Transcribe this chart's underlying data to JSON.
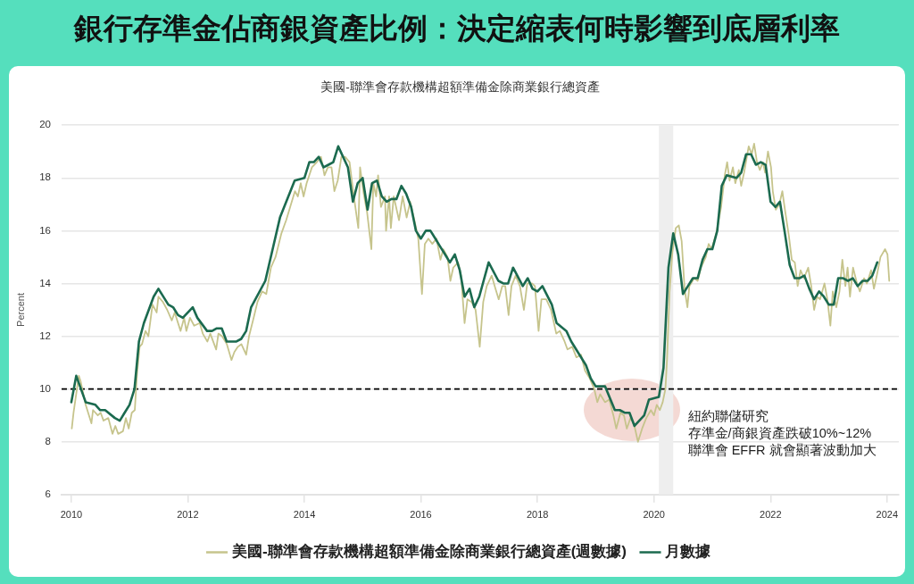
{
  "chart_data": {
    "type": "line",
    "title": "銀行存準金佔商銀資產比例：決定縮表何時影響到底層利率",
    "subtitle": "美國-聯準會存款機構超額準備金除商業銀行總資產",
    "ylabel": "Percent",
    "xlim": [
      "2009-11",
      "2024-03-15"
    ],
    "xticks": [
      "2010",
      "2012",
      "2014",
      "2016",
      "2018",
      "2020",
      "2022",
      "2024"
    ],
    "ylim": [
      6,
      20
    ],
    "yticks": [
      6,
      8,
      10,
      12,
      14,
      16,
      18,
      20
    ],
    "grid": "y",
    "legend": "bottom",
    "marker": "none",
    "line_style": "solid",
    "ref_lines": [
      {
        "axis": "y",
        "value": 10,
        "color": "#000000",
        "line_style": "dashed"
      }
    ],
    "bands": [
      {
        "axis": "x",
        "from": "2020-02",
        "to": "2020-05",
        "color": "#eeeeee"
      }
    ],
    "annotations": [
      "紐約聯儲研究",
      "存準金/商銀資產跌破10%~12%",
      "聯準會 EFFR 就會顯著波動加大"
    ],
    "series": [
      {
        "name": "美國-聯準會存款機構超額準備金除商業銀行總資產(週數據)",
        "color": "#c6c48c",
        "x": [
          "2010-01-04",
          "2010-01-15",
          "2010-02-17",
          "2010-02-28",
          "2010-04-01",
          "2010-05-07",
          "2010-05-17",
          "2010-06-16",
          "2010-07-04",
          "2010-07-22",
          "2010-08-21",
          "2010-09-16",
          "2010-10-04",
          "2010-10-22",
          "2010-11-21",
          "2010-12-09",
          "2010-12-27",
          "2011-01-15",
          "2011-02-03",
          "2011-02-17",
          "2011-03-05",
          "2011-03-20",
          "2011-04-11",
          "2011-04-29",
          "2011-05-25",
          "2011-06-20",
          "2011-07-01",
          "2011-07-29",
          "2011-08-25",
          "2011-09-23",
          "2011-10-11",
          "2011-11-17",
          "2011-12-09",
          "2011-12-23",
          "2012-01-15",
          "2012-02-10",
          "2012-03-16",
          "2012-04-04",
          "2012-05-03",
          "2012-05-21",
          "2012-06-27",
          "2012-07-11",
          "2012-08-03",
          "2012-09-02",
          "2012-10-01",
          "2012-10-19",
          "2012-11-10",
          "2012-12-02",
          "2013-01-01",
          "2013-01-19",
          "2013-02-17",
          "2013-03-13",
          "2013-04-11",
          "2013-05-07",
          "2013-06-05",
          "2013-07-04",
          "2013-08-10",
          "2013-09-09",
          "2013-10-04",
          "2013-11-03",
          "2013-11-21",
          "2013-12-09",
          "2013-12-27",
          "2014-01-15",
          "2014-02-17",
          "2014-03-20",
          "2014-04-15",
          "2014-05-07",
          "2014-05-28",
          "2014-06-20",
          "2014-07-08",
          "2014-07-29",
          "2014-08-21",
          "2014-09-13",
          "2014-10-11",
          "2014-11-07",
          "2014-12-05",
          "2014-12-16",
          "2015-01-08",
          "2015-01-29",
          "2015-02-25",
          "2015-03-09",
          "2015-03-27",
          "2015-04-08",
          "2015-04-26",
          "2015-05-21",
          "2015-05-28",
          "2015-06-16",
          "2015-06-27",
          "2015-07-15",
          "2015-08-17",
          "2015-09-09",
          "2015-10-04",
          "2015-10-26",
          "2015-11-25",
          "2015-12-16",
          "2016-01-08",
          "2016-01-26",
          "2016-02-17",
          "2016-03-13",
          "2016-04-08",
          "2016-05-03",
          "2016-05-21",
          "2016-06-16",
          "2016-07-04",
          "2016-07-22",
          "2016-08-21",
          "2016-09-09",
          "2016-10-01",
          "2016-10-19",
          "2016-11-14",
          "2016-12-09",
          "2017-01-04",
          "2017-01-26",
          "2017-02-17",
          "2017-03-20",
          "2017-04-08",
          "2017-05-03",
          "2017-05-25",
          "2017-06-13",
          "2017-07-04",
          "2017-07-22",
          "2017-08-17",
          "2017-09-13",
          "2017-10-08",
          "2017-10-29",
          "2017-11-28",
          "2017-12-16",
          "2018-01-08",
          "2018-01-26",
          "2018-02-25",
          "2018-03-27",
          "2018-04-29",
          "2018-05-21",
          "2018-06-20",
          "2018-07-08",
          "2018-08-07",
          "2018-09-02",
          "2018-10-01",
          "2018-10-26",
          "2018-11-25",
          "2018-12-23",
          "2019-01-11",
          "2019-01-29",
          "2019-02-28",
          "2019-03-27",
          "2019-04-22",
          "2019-05-10",
          "2019-06-05",
          "2019-06-27",
          "2019-07-15",
          "2019-08-07",
          "2019-08-28",
          "2019-09-23",
          "2019-10-19",
          "2019-11-14",
          "2019-12-13",
          "2020-01-01",
          "2020-01-19",
          "2020-02-07",
          "2020-02-25",
          "2020-03-13",
          "2020-03-23",
          "2020-04-08",
          "2020-04-26",
          "2020-05-17",
          "2020-06-05",
          "2020-06-23",
          "2020-07-11",
          "2020-07-29",
          "2020-08-10",
          "2020-09-09",
          "2020-10-01",
          "2020-10-22",
          "2020-11-21",
          "2020-12-09",
          "2020-12-27",
          "2021-01-26",
          "2021-02-25",
          "2021-03-20",
          "2021-04-04",
          "2021-04-19",
          "2021-05-10",
          "2021-05-25",
          "2021-06-16",
          "2021-07-01",
          "2021-07-19",
          "2021-08-17",
          "2021-09-05",
          "2021-09-20",
          "2021-10-08",
          "2021-10-26",
          "2021-11-14",
          "2021-11-28",
          "2021-12-16",
          "2022-01-04",
          "2022-01-15",
          "2022-02-03",
          "2022-02-25",
          "2022-03-16",
          "2022-04-01",
          "2022-04-26",
          "2022-05-14",
          "2022-06-02",
          "2022-06-20",
          "2022-07-08",
          "2022-07-29",
          "2022-08-25",
          "2022-09-13",
          "2022-10-01",
          "2022-10-19",
          "2022-11-07",
          "2022-12-05",
          "2022-12-23",
          "2023-01-11",
          "2023-01-26",
          "2023-02-17",
          "2023-03-09",
          "2023-03-27",
          "2023-04-15",
          "2023-04-29",
          "2023-05-14",
          "2023-06-02",
          "2023-06-27",
          "2023-07-15",
          "2023-08-10",
          "2023-08-28",
          "2023-09-23",
          "2023-10-11",
          "2023-10-29",
          "2023-11-21",
          "2023-12-20",
          "2024-01-04",
          "2024-01-15"
        ],
        "values": [
          8.5,
          9.1,
          10.5,
          10.3,
          9.4,
          8.7,
          9.2,
          9.0,
          9.1,
          8.8,
          8.9,
          8.3,
          8.6,
          8.3,
          8.4,
          8.9,
          8.5,
          9.1,
          9.2,
          10.6,
          11.6,
          11.7,
          12.2,
          12.0,
          13.2,
          12.9,
          13.5,
          13.3,
          13.0,
          12.6,
          12.9,
          12.2,
          12.7,
          12.2,
          12.7,
          12.4,
          12.5,
          12.1,
          11.8,
          12.1,
          11.5,
          12.1,
          12.0,
          11.7,
          11.1,
          11.4,
          11.6,
          11.7,
          11.3,
          12.0,
          12.7,
          13.3,
          13.7,
          13.6,
          14.6,
          15.0,
          15.9,
          16.4,
          16.9,
          17.5,
          17.3,
          17.8,
          17.3,
          17.8,
          18.4,
          18.6,
          18.8,
          18.1,
          18.4,
          18.4,
          17.5,
          17.9,
          18.8,
          18.8,
          18.6,
          17.3,
          16.1,
          18.4,
          17.4,
          16.7,
          15.3,
          17.8,
          17.3,
          18.1,
          16.9,
          17.3,
          16.0,
          17.3,
          16.1,
          17.3,
          16.4,
          17.3,
          16.5,
          17.1,
          16.3,
          15.7,
          13.6,
          15.5,
          15.7,
          15.5,
          15.7,
          14.9,
          15.3,
          15.0,
          14.1,
          14.6,
          14.8,
          14.3,
          12.5,
          13.4,
          13.3,
          13.0,
          11.6,
          13.3,
          13.9,
          14.3,
          13.9,
          13.4,
          13.9,
          13.9,
          12.8,
          13.9,
          14.3,
          13.9,
          13.0,
          14.0,
          14.0,
          13.9,
          12.2,
          13.4,
          13.4,
          13.0,
          12.1,
          12.2,
          11.8,
          11.5,
          11.6,
          11.2,
          11.3,
          10.7,
          10.4,
          10.0,
          9.5,
          9.8,
          9.5,
          9.6,
          9.0,
          8.5,
          9.1,
          9.0,
          8.5,
          8.9,
          8.7,
          8.0,
          8.5,
          8.9,
          9.2,
          9.0,
          9.4,
          9.2,
          9.5,
          10.0,
          11.1,
          13.7,
          15.2,
          16.1,
          16.2,
          15.6,
          13.8,
          13.1,
          13.9,
          14.2,
          14.1,
          14.6,
          15.0,
          15.5,
          15.3,
          15.9,
          16.9,
          18.1,
          18.6,
          17.9,
          18.4,
          17.8,
          18.3,
          17.7,
          18.2,
          19.2,
          18.9,
          19.3,
          18.6,
          18.3,
          18.6,
          18.2,
          19.0,
          18.4,
          17.5,
          16.8,
          17.0,
          17.5,
          16.8,
          15.8,
          14.9,
          14.8,
          13.9,
          14.5,
          14.2,
          14.6,
          13.9,
          13.0,
          13.5,
          13.4,
          14.0,
          13.4,
          12.4,
          13.7,
          13.1,
          13.7,
          14.9,
          13.9,
          14.6,
          13.5,
          14.6,
          14.0,
          13.7,
          14.2,
          14.0,
          14.5,
          13.8,
          14.3,
          15.0,
          15.3,
          15.1,
          14.1
        ]
      },
      {
        "name": "月數據",
        "color": "#1b6a4f",
        "x": [
          "2010-01",
          "2010-02",
          "2010-04",
          "2010-06",
          "2010-07",
          "2010-08",
          "2010-10",
          "2010-11",
          "2010-12",
          "2011-01",
          "2011-02",
          "2011-03",
          "2011-04",
          "2011-06",
          "2011-07",
          "2011-09",
          "2011-10",
          "2011-11",
          "2011-12",
          "2012-02",
          "2012-03",
          "2012-05",
          "2012-06",
          "2012-07",
          "2012-08",
          "2012-09",
          "2012-11",
          "2012-12",
          "2013-01",
          "2013-02",
          "2013-05",
          "2013-08",
          "2013-11",
          "2014-01",
          "2014-02",
          "2014-03",
          "2014-04",
          "2014-05",
          "2014-06",
          "2014-07",
          "2014-08",
          "2014-10",
          "2014-11",
          "2014-12",
          "2015-01",
          "2015-02",
          "2015-03",
          "2015-04",
          "2015-05",
          "2015-06",
          "2015-07",
          "2015-08",
          "2015-09",
          "2015-10",
          "2015-11",
          "2015-12",
          "2016-01",
          "2016-02",
          "2016-03",
          "2016-04",
          "2016-05",
          "2016-06",
          "2016-07",
          "2016-08",
          "2016-09",
          "2016-10",
          "2016-11",
          "2016-12",
          "2017-01",
          "2017-03",
          "2017-05",
          "2017-06",
          "2017-07",
          "2017-08",
          "2017-10",
          "2017-11",
          "2017-12",
          "2018-01",
          "2018-02",
          "2018-04",
          "2018-05",
          "2018-07",
          "2018-08",
          "2018-11",
          "2018-12",
          "2019-01",
          "2019-03",
          "2019-05",
          "2019-06",
          "2019-07",
          "2019-08",
          "2019-09",
          "2019-11",
          "2019-12",
          "2020-02",
          "2020-03",
          "2020-04",
          "2020-05",
          "2020-06",
          "2020-07",
          "2020-08",
          "2020-09",
          "2020-10",
          "2020-11",
          "2020-12",
          "2021-01",
          "2021-02",
          "2021-03",
          "2021-04",
          "2021-06",
          "2021-07",
          "2021-08",
          "2021-09",
          "2021-10",
          "2021-11",
          "2021-12",
          "2022-01",
          "2022-02",
          "2022-03",
          "2022-04",
          "2022-05",
          "2022-06",
          "2022-07",
          "2022-08",
          "2022-09",
          "2022-10",
          "2022-11",
          "2022-12",
          "2023-01",
          "2023-02",
          "2023-03",
          "2023-04",
          "2023-05",
          "2023-06",
          "2023-07",
          "2023-08",
          "2023-09",
          "2023-10",
          "2023-11"
        ],
        "values": [
          9.5,
          10.5,
          9.5,
          9.4,
          9.2,
          9.2,
          8.9,
          8.8,
          9.1,
          9.4,
          10.0,
          11.8,
          12.5,
          13.5,
          13.8,
          13.2,
          13.1,
          12.8,
          12.7,
          13.1,
          12.7,
          12.2,
          12.2,
          12.3,
          12.3,
          11.8,
          11.8,
          11.9,
          12.2,
          13.1,
          14.1,
          16.5,
          17.9,
          18.0,
          18.6,
          18.6,
          18.8,
          18.4,
          18.5,
          18.6,
          19.2,
          18.4,
          17.1,
          17.8,
          18.0,
          16.8,
          17.8,
          17.9,
          17.3,
          17.1,
          17.2,
          17.2,
          17.7,
          17.4,
          16.9,
          16.0,
          15.7,
          16.0,
          16.0,
          15.7,
          15.4,
          15.1,
          14.8,
          15.1,
          14.5,
          13.5,
          13.8,
          13.1,
          13.5,
          14.8,
          14.1,
          14.0,
          14.0,
          14.6,
          13.9,
          14.2,
          13.8,
          13.7,
          13.9,
          13.2,
          12.5,
          12.2,
          11.8,
          10.9,
          10.4,
          10.1,
          10.1,
          9.2,
          9.2,
          9.1,
          9.1,
          8.6,
          9.0,
          9.6,
          9.7,
          10.8,
          14.6,
          15.9,
          15.1,
          13.6,
          13.9,
          14.2,
          14.2,
          14.9,
          15.3,
          15.3,
          16.0,
          17.7,
          18.1,
          18.0,
          18.2,
          18.9,
          18.9,
          18.5,
          18.6,
          18.5,
          17.1,
          16.9,
          17.1,
          15.9,
          14.7,
          14.2,
          14.2,
          14.3,
          13.8,
          13.4,
          13.7,
          13.5,
          13.2,
          13.2,
          14.2,
          14.2,
          14.1,
          14.2,
          13.9,
          14.1,
          14.1,
          14.3,
          14.8
        ]
      }
    ]
  }
}
